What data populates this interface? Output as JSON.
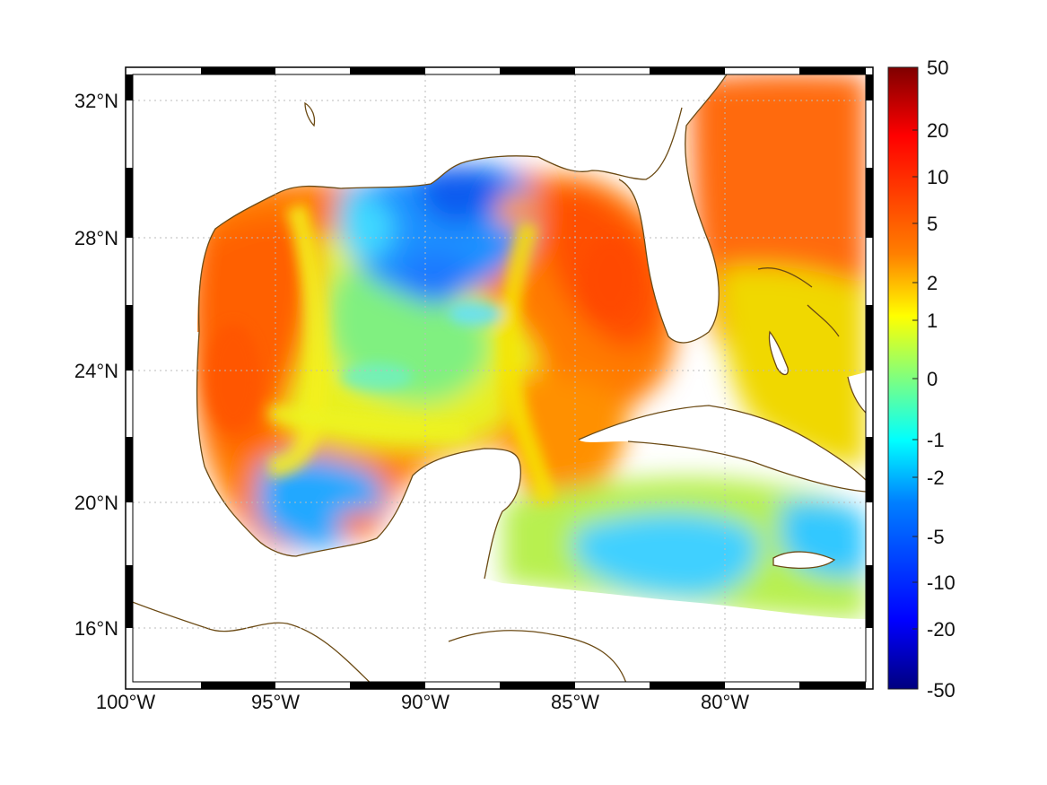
{
  "map": {
    "lon_labels": [
      "100°W",
      "95°W",
      "90°W",
      "85°W",
      "80°W"
    ],
    "lat_labels": [
      "32°N",
      "28°N",
      "24°N",
      "20°N",
      "16°N"
    ],
    "lon_range": [
      -100,
      -75.1
    ],
    "lat_range": [
      14.2,
      33.0
    ],
    "projection": "equirectangular",
    "gridlines": "dotted",
    "frame": "alternating black-white border",
    "coastline_color": "#6b4a14"
  },
  "colorbar": {
    "tick_labels": [
      "50",
      "20",
      "10",
      "5",
      "2",
      "1",
      "0",
      "-1",
      "-2",
      "-5",
      "-10",
      "-20",
      "-50"
    ],
    "colormap": "jet",
    "scale": "symmetric, non-linear (log-like)"
  },
  "field": {
    "description_of_regions": [
      {
        "region": "western Gulf (Texas-Mexico shelf)",
        "value_range": "5 to 10",
        "color": "#ff6a00"
      },
      {
        "region": "northern Gulf (Mississippi-Alabama)",
        "value_range": "-5 to -2",
        "color": "#1e8cff"
      },
      {
        "region": "eastern Gulf / West Florida",
        "value_range": "5 to 10",
        "color": "#ff5a00"
      },
      {
        "region": "Atlantic east of Florida",
        "value_range": "5 to 10",
        "color": "#ff6a10"
      },
      {
        "region": "Bay of Campeche",
        "value_range": "-5 to -1",
        "color": "#20b0ff"
      },
      {
        "region": "Caribbean south of Cuba",
        "value_range": "-2 to 1",
        "color": "#40e0ff"
      }
    ]
  }
}
